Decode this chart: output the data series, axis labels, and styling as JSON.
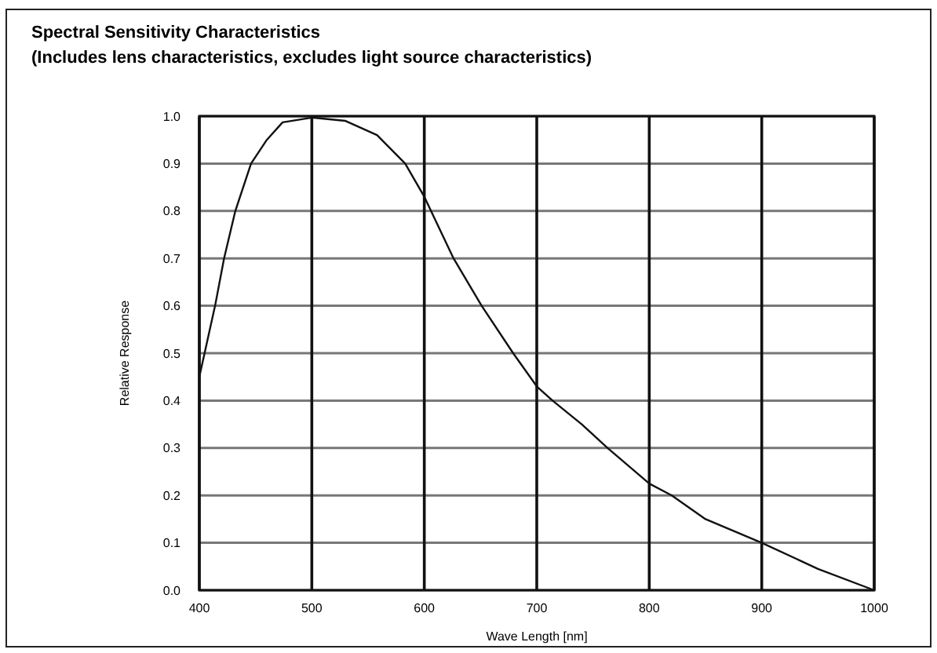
{
  "chart_data": {
    "type": "line",
    "title": "Spectral Sensitivity Characteristics",
    "subtitle": "(Includes lens characteristics, excludes light source characteristics)",
    "xlabel": "Wave Length [nm]",
    "ylabel": "Relative Response",
    "x": [
      400,
      414,
      422,
      432,
      446,
      460,
      474,
      500,
      530,
      558,
      583,
      600,
      626,
      651,
      679,
      700,
      714,
      740,
      763,
      800,
      820,
      850,
      900,
      950,
      1000
    ],
    "series": [
      {
        "color": "#111111",
        "values": [
          0.45,
          0.6,
          0.7,
          0.8,
          0.9,
          0.95,
          0.987,
          0.997,
          0.99,
          0.96,
          0.9,
          0.83,
          0.7,
          0.6,
          0.5,
          0.43,
          0.4,
          0.35,
          0.3,
          0.225,
          0.2,
          0.15,
          0.1,
          0.045,
          0.0
        ]
      }
    ],
    "xlim": [
      400,
      1000
    ],
    "xticks": [
      400,
      500,
      600,
      700,
      800,
      900,
      1000
    ],
    "ylim": [
      0,
      1
    ],
    "yticks": [
      {
        "value": 0,
        "label": "0.0"
      },
      0.1,
      0.2,
      0.3,
      0.4,
      0.5,
      0.6,
      0.7,
      0.8,
      0.9,
      {
        "value": 1,
        "label": "1.0"
      }
    ],
    "grid": true,
    "marker": "none",
    "line_style": "solid"
  }
}
